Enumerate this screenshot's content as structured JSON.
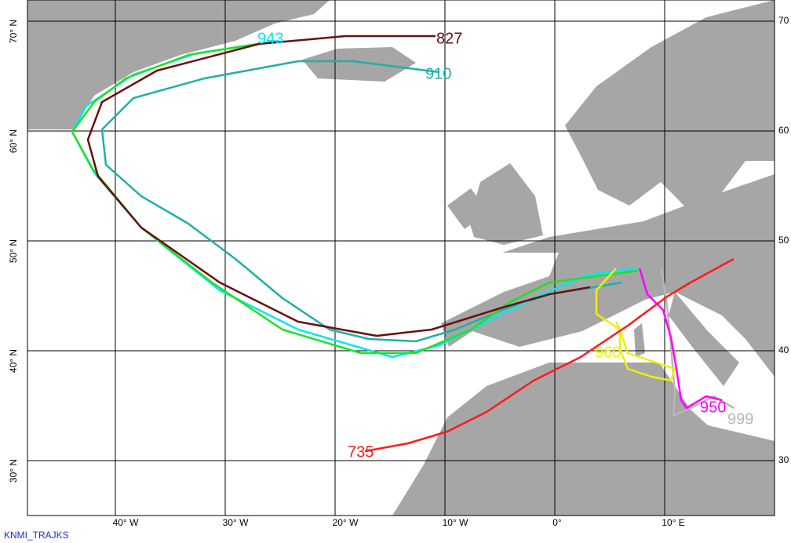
{
  "map": {
    "lat_labels_left": [
      "70° N",
      "60° N",
      "50° N",
      "40° N",
      "30° N"
    ],
    "lat_labels_right": [
      "70",
      "60",
      "50",
      "40",
      "30"
    ],
    "lon_labels": [
      "40° W",
      "30° W",
      "20° W",
      "10° W",
      "0°",
      "10° E"
    ],
    "trajectories": [
      {
        "label": "827",
        "color": "#6b0f0f"
      },
      {
        "label": "910",
        "color": "#20b0a8"
      },
      {
        "label": "943",
        "color": "#00e8f0"
      },
      {
        "label": "735",
        "color": "#ff1a1a"
      },
      {
        "label": "960",
        "color": "#f0f000"
      },
      {
        "label": "950",
        "color": "#ff00ff"
      },
      {
        "label": "999",
        "color": "#b8b8b8"
      }
    ],
    "credit": "KNMI_TRAJKS"
  }
}
